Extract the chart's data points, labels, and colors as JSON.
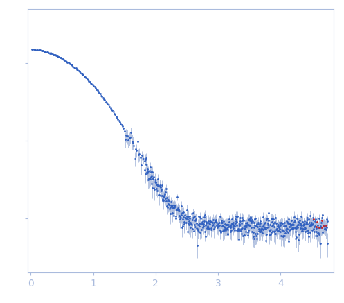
{
  "title": "",
  "xlabel": "",
  "ylabel": "",
  "xlim": [
    -0.05,
    4.85
  ],
  "x_ticks": [
    0,
    1,
    2,
    3,
    4
  ],
  "background_color": "#ffffff",
  "spine_color": "#aabbdd",
  "tick_color": "#aabbdd",
  "label_color": "#aabbdd",
  "dot_color": "#3060c0",
  "error_color": "#aabbdd",
  "outlier_color": "#cc2222",
  "dot_size": 4,
  "line_width": 0.7,
  "ylim": [
    200,
    500000
  ]
}
